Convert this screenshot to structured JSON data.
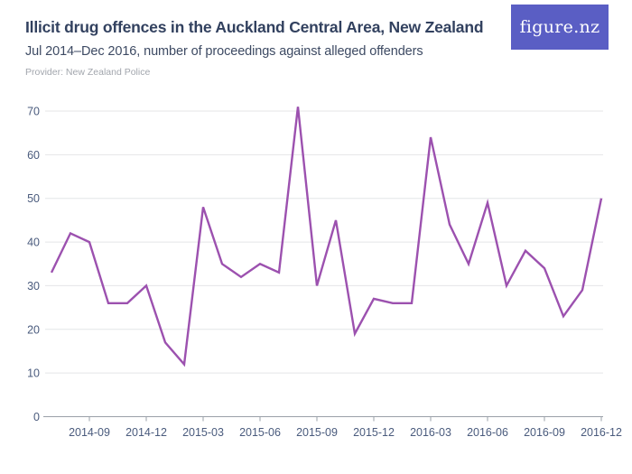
{
  "header": {
    "title": "Illicit drug offences in the Auckland Central Area, New Zealand",
    "subtitle": "Jul 2014–Dec 2016, number of proceedings against alleged offenders",
    "provider": "Provider: New Zealand Police",
    "logo_text": "figure.nz"
  },
  "colors": {
    "line": "#9c51af",
    "grid": "#e4e5e7",
    "axis": "#9aa0a8",
    "tick_text": "#4a5b7d",
    "title_text": "#32415f",
    "logo_bg": "#5a5ec4"
  },
  "chart_data": {
    "type": "line",
    "title": "Illicit drug offences in the Auckland Central Area, New Zealand",
    "subtitle": "Jul 2014–Dec 2016, number of proceedings against alleged offenders",
    "x": [
      "2014-07",
      "2014-08",
      "2014-09",
      "2014-10",
      "2014-11",
      "2014-12",
      "2015-01",
      "2015-02",
      "2015-03",
      "2015-04",
      "2015-05",
      "2015-06",
      "2015-07",
      "2015-08",
      "2015-09",
      "2015-10",
      "2015-11",
      "2015-12",
      "2016-01",
      "2016-02",
      "2016-03",
      "2016-04",
      "2016-05",
      "2016-06",
      "2016-07",
      "2016-08",
      "2016-09",
      "2016-10",
      "2016-11",
      "2016-12"
    ],
    "values": [
      33,
      42,
      40,
      26,
      26,
      30,
      17,
      12,
      48,
      35,
      32,
      35,
      33,
      71,
      30,
      45,
      19,
      27,
      26,
      26,
      64,
      44,
      35,
      49,
      30,
      38,
      34,
      23,
      29,
      50
    ],
    "x_tick_labels": [
      "2014-09",
      "2014-12",
      "2015-03",
      "2015-06",
      "2015-09",
      "2015-12",
      "2016-03",
      "2016-06",
      "2016-09",
      "2016-12"
    ],
    "ylim": [
      0,
      70
    ],
    "yticks": [
      0,
      10,
      20,
      30,
      40,
      50,
      60,
      70
    ],
    "grid": true,
    "legend": false,
    "line_color": "#9c51af"
  }
}
